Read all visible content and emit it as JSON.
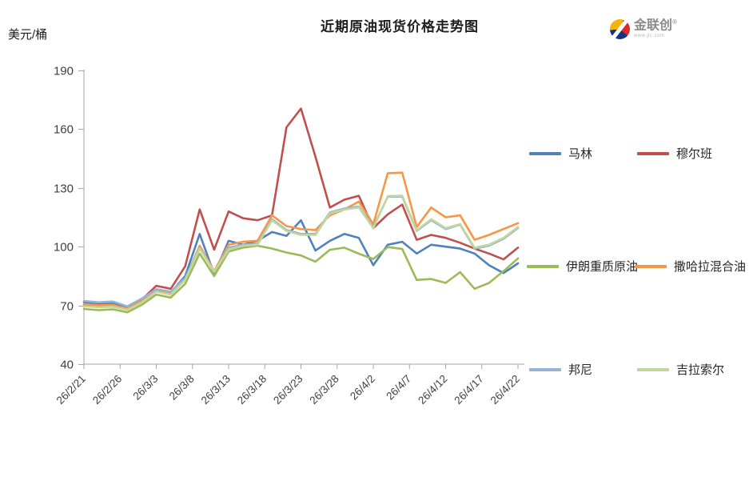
{
  "header": {
    "title": "近期原油现货价格走势图"
  },
  "logo": {
    "name": "金联创",
    "reg_mark": "®",
    "tagline": "www.jlc.com"
  },
  "palette": {
    "axis_line": "#a6a6a6",
    "tick_text": "#3f3f3f",
    "title_text": "#1e1e1e"
  },
  "chart_data": {
    "type": "line",
    "title": "近期原油现货价格走势图",
    "ylabel": "美元/桶",
    "xlabel": "",
    "ylim": [
      40,
      190
    ],
    "y_ticks": [
      40,
      70,
      100,
      130,
      160,
      190
    ],
    "grid": false,
    "legend_position": "right",
    "x_tick_labels": [
      "26/2/21",
      "26/2/26",
      "26/3/3",
      "26/3/8",
      "26/3/13",
      "26/3/18",
      "26/3/23",
      "26/3/28",
      "26/4/2",
      "26/4/7",
      "26/4/12",
      "26/4/17",
      "26/4/22"
    ],
    "x": [
      "26/2/21",
      "26/2/23",
      "26/2/25",
      "26/2/27",
      "26/3/1",
      "26/3/3",
      "26/3/5",
      "26/3/7",
      "26/3/9",
      "26/3/11",
      "26/3/13",
      "26/3/15",
      "26/3/17",
      "26/3/19",
      "26/3/21",
      "26/3/23",
      "26/3/25",
      "26/3/27",
      "26/3/29",
      "26/3/31",
      "26/4/2",
      "26/4/4",
      "26/4/6",
      "26/4/8",
      "26/4/10",
      "26/4/12",
      "26/4/14",
      "26/4/16",
      "26/4/18",
      "26/4/20",
      "26/4/22"
    ],
    "series": [
      {
        "name": "马林",
        "color": "#4F81BD",
        "values": [
          71.7,
          71.0,
          71.3,
          69.0,
          73.0,
          78.0,
          76.5,
          85.0,
          106.5,
          86.0,
          103.0,
          101.0,
          103.0,
          107.5,
          105.5,
          113.5,
          98.0,
          103.0,
          106.5,
          104.5,
          90.5,
          101.0,
          102.5,
          96.5,
          101.0,
          100.0,
          99.0,
          96.5,
          90.5,
          86.5,
          91.5
        ]
      },
      {
        "name": "穆尔班",
        "color": "#C0504D",
        "values": [
          70.2,
          69.6,
          70.0,
          68.0,
          73.0,
          80.0,
          78.5,
          90.0,
          119.0,
          98.5,
          118.0,
          114.5,
          113.5,
          116.0,
          161.0,
          170.5,
          146.0,
          120.0,
          124.0,
          126.0,
          109.5,
          116.5,
          121.5,
          103.5,
          106.0,
          104.5,
          102.0,
          99.0,
          96.5,
          93.5,
          99.5
        ]
      },
      {
        "name": "伊朗重质原油",
        "color": "#9BBB59",
        "values": [
          68.2,
          67.6,
          68.0,
          66.5,
          70.3,
          75.5,
          74.0,
          81.0,
          96.5,
          85.0,
          97.5,
          99.5,
          100.5,
          99.0,
          97.0,
          95.5,
          92.3,
          98.4,
          99.5,
          96.4,
          93.7,
          99.8,
          98.8,
          83.0,
          83.5,
          81.5,
          87.0,
          78.5,
          81.5,
          87.5,
          94.0
        ]
      },
      {
        "name": "撒哈拉混合油",
        "color": "#F79646",
        "values": [
          70.7,
          70.0,
          70.3,
          68.3,
          72.3,
          77.5,
          76.0,
          83.5,
          100.5,
          87.5,
          101.0,
          102.5,
          103.0,
          116.0,
          110.5,
          109.0,
          108.5,
          116.0,
          119.0,
          123.0,
          111.5,
          137.5,
          137.8,
          110.0,
          120.0,
          115.0,
          116.0,
          103.5,
          106.0,
          109.0,
          112.0
        ]
      },
      {
        "name": "邦尼",
        "color": "#95B3D7",
        "values": [
          72.3,
          71.6,
          72.0,
          69.5,
          73.5,
          78.3,
          77.0,
          84.0,
          99.5,
          87.0,
          99.5,
          101.0,
          101.5,
          114.0,
          108.5,
          106.5,
          106.5,
          117.5,
          119.5,
          120.5,
          110.0,
          125.5,
          125.6,
          108.0,
          113.5,
          109.0,
          111.3,
          99.0,
          100.5,
          104.0,
          109.5
        ]
      },
      {
        "name": "吉拉索尔",
        "color": "#C3D69B",
        "values": [
          69.6,
          69.0,
          69.3,
          67.8,
          71.5,
          77.0,
          75.5,
          83.0,
          99.0,
          87.3,
          98.5,
          100.5,
          101.0,
          113.5,
          108.0,
          106.0,
          106.0,
          117.0,
          119.0,
          120.0,
          109.5,
          125.8,
          126.0,
          108.3,
          114.0,
          109.5,
          111.5,
          99.5,
          101.0,
          104.5,
          110.0
        ]
      }
    ]
  }
}
